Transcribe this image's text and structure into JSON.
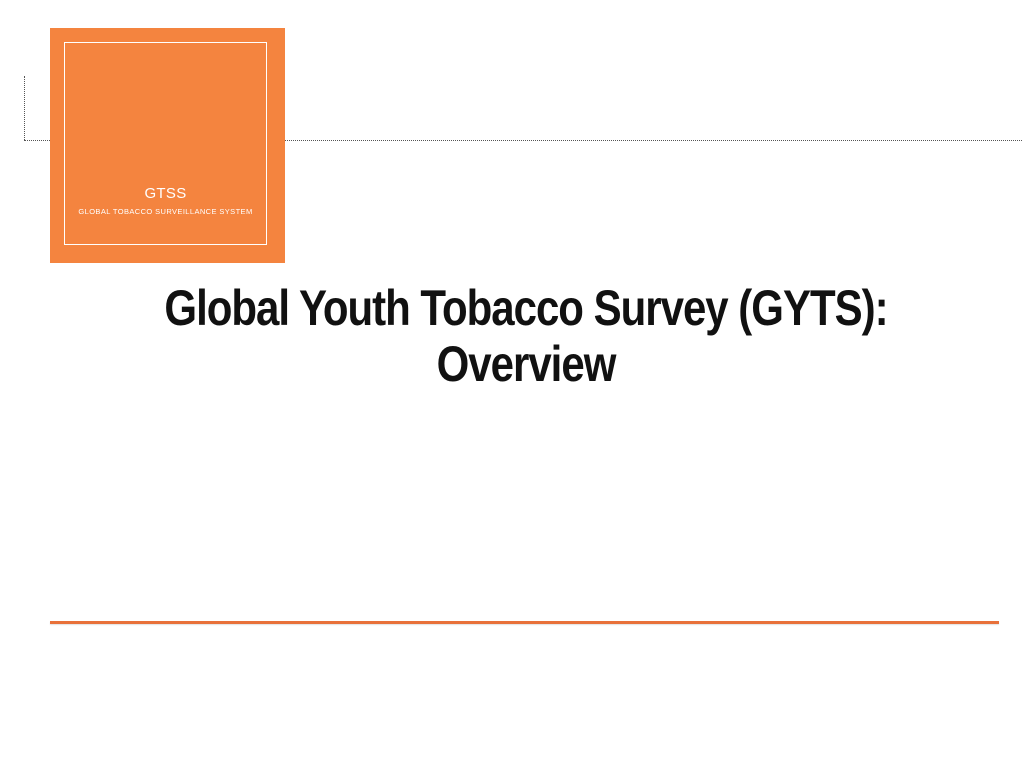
{
  "logo": {
    "acronym": "GTSS",
    "subtitle": "GLOBAL TOBACCO SURVEILLANCE SYSTEM",
    "color": "#f4843f"
  },
  "slide": {
    "title_line1": "Global Youth Tobacco Survey (GYTS):",
    "title_line2": "Overview"
  },
  "accent_color": "#e8713a"
}
